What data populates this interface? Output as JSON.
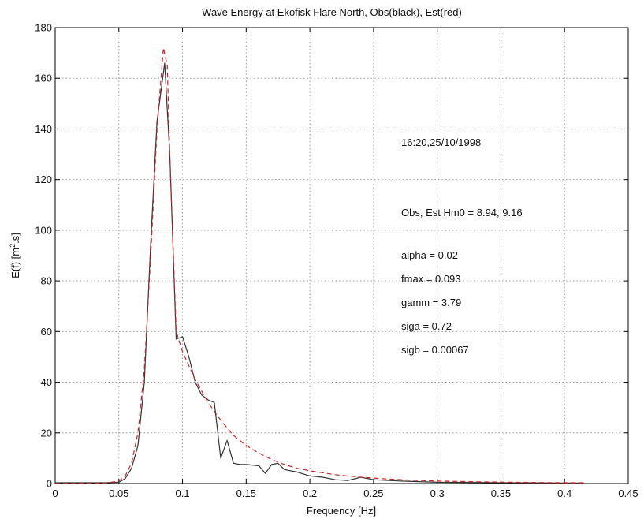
{
  "chart_data": {
    "type": "line",
    "title": "Wave Energy at Ekofisk Flare North, Obs(black), Est(red)",
    "xlabel": "Frequency [Hz]",
    "ylabel": "E(f) [m².s]",
    "xlim": [
      0,
      0.45
    ],
    "ylim": [
      0,
      180
    ],
    "xticks": [
      0,
      0.05,
      0.1,
      0.15,
      0.2,
      0.25,
      0.3,
      0.35,
      0.4,
      0.45
    ],
    "xtick_labels": [
      "0",
      "0.05",
      "0.1",
      "0.15",
      "0.2",
      "0.25",
      "0.3",
      "0.35",
      "0.4",
      "0.45"
    ],
    "yticks": [
      0,
      20,
      40,
      60,
      80,
      100,
      120,
      140,
      160,
      180
    ],
    "ytick_labels": [
      "0",
      "20",
      "40",
      "60",
      "80",
      "100",
      "120",
      "140",
      "160",
      "180"
    ],
    "grid": true,
    "series": [
      {
        "name": "Obs",
        "color": "#333333",
        "style": "solid",
        "x": [
          0.0,
          0.02,
          0.04,
          0.05,
          0.055,
          0.06,
          0.065,
          0.07,
          0.075,
          0.08,
          0.086,
          0.09,
          0.095,
          0.1,
          0.105,
          0.11,
          0.115,
          0.12,
          0.125,
          0.13,
          0.135,
          0.14,
          0.145,
          0.15,
          0.16,
          0.165,
          0.17,
          0.175,
          0.18,
          0.19,
          0.2,
          0.21,
          0.22,
          0.23,
          0.24,
          0.25,
          0.27,
          0.3,
          0.35,
          0.4,
          0.415
        ],
        "y": [
          0.3,
          0.3,
          0.3,
          0.5,
          2,
          6,
          15,
          40,
          95,
          143,
          166,
          130,
          57,
          58,
          50,
          40,
          35,
          33,
          32,
          10,
          17,
          8,
          7.5,
          7.5,
          7,
          4,
          7.5,
          8,
          5.5,
          4.5,
          3,
          2.5,
          1.5,
          1.2,
          2.5,
          1.5,
          1.0,
          0.5,
          0.3,
          0.2,
          0.2
        ]
      },
      {
        "name": "Est",
        "color": "#cc2222",
        "style": "dashed",
        "x": [
          0.0,
          0.04,
          0.05,
          0.055,
          0.06,
          0.065,
          0.07,
          0.075,
          0.08,
          0.085,
          0.088,
          0.09,
          0.095,
          0.1,
          0.11,
          0.12,
          0.13,
          0.14,
          0.15,
          0.16,
          0.17,
          0.18,
          0.19,
          0.2,
          0.22,
          0.24,
          0.26,
          0.28,
          0.3,
          0.33,
          0.36,
          0.4,
          0.415
        ],
        "y": [
          0.0,
          0.2,
          1,
          3,
          8,
          20,
          45,
          90,
          140,
          172,
          165,
          130,
          60,
          52,
          41,
          32,
          25,
          19,
          15,
          12,
          9.5,
          7.5,
          6,
          5,
          3.5,
          2.5,
          1.8,
          1.3,
          1.0,
          0.7,
          0.5,
          0.3,
          0.3
        ]
      }
    ],
    "annotations": [
      {
        "text": "16:20,25/10/1998"
      },
      {
        "text": "Obs, Est Hm0 = 8.94, 9.16"
      },
      {
        "text": "alpha = 0.02"
      },
      {
        "text": "fmax  = 0.093"
      },
      {
        "text": "gamm  = 3.79"
      },
      {
        "text": "siga  = 0.72"
      },
      {
        "text": "sigb  = 0.00067"
      }
    ]
  }
}
